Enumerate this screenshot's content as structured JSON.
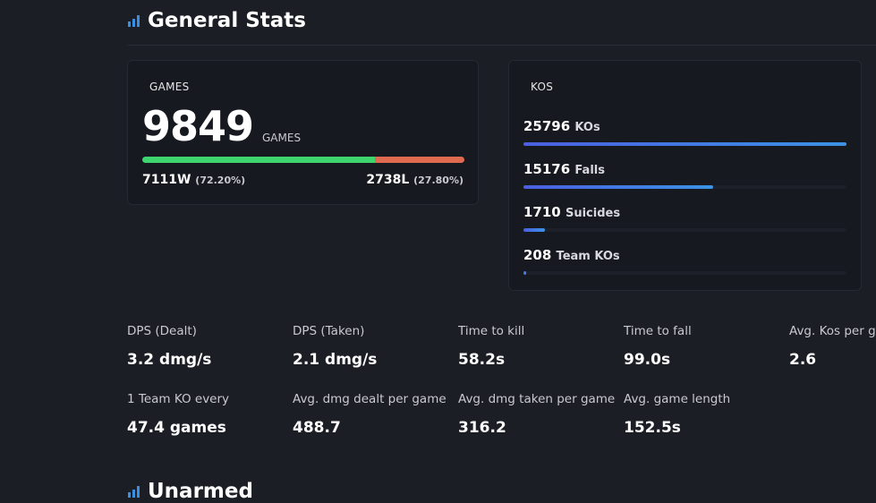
{
  "section_title": "General Stats",
  "games": {
    "label": "GAMES",
    "total": "9849",
    "unit": "GAMES",
    "wins": "7111W",
    "win_pct": "(72.20%)",
    "losses": "2738L",
    "loss_pct": "(27.80%)",
    "win_fraction": 0.722
  },
  "kos": {
    "label": "KOS",
    "rows": [
      {
        "value": "25796",
        "label": "KOs",
        "fraction": 1.0
      },
      {
        "value": "15176",
        "label": "Falls",
        "fraction": 0.588
      },
      {
        "value": "1710",
        "label": "Suicides",
        "fraction": 0.066
      },
      {
        "value": "208",
        "label": "Team KOs",
        "fraction": 0.008
      }
    ]
  },
  "stats": [
    {
      "label": "DPS (Dealt)",
      "value": "3.2 dmg/s"
    },
    {
      "label": "DPS (Taken)",
      "value": "2.1 dmg/s"
    },
    {
      "label": "Time to kill",
      "value": "58.2s"
    },
    {
      "label": "Time to fall",
      "value": "99.0s"
    },
    {
      "label": "Avg. Kos per game",
      "value": "2.6"
    },
    {
      "label": "1 Team KO every",
      "value": "47.4 games"
    },
    {
      "label": "Avg. dmg dealt per game",
      "value": "488.7"
    },
    {
      "label": "Avg. dmg taken per game",
      "value": "316.2"
    },
    {
      "label": "Avg. game length",
      "value": "152.5s"
    }
  ],
  "next_section_title": "Unarmed",
  "colors": {
    "win": "#3ed46e",
    "loss": "#e06a50",
    "accent": "#3b8fe0"
  }
}
